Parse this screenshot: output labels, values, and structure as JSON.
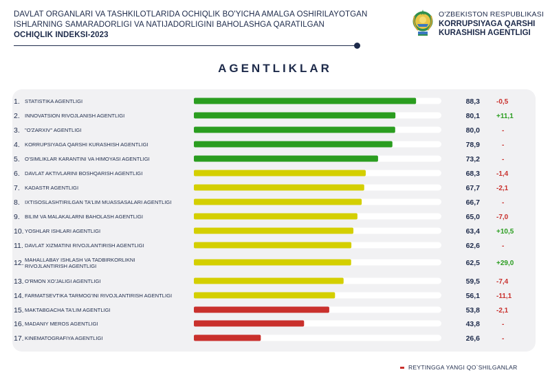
{
  "header": {
    "line1": "DAVLAT ORGANLARI VA TASHKILOTLARIDA OCHIQLIK BO'YICHA AMALGA OSHIRILAYOTGAN",
    "line2": "ISHLARNING SAMARADORLIGI VA NATIJADORLIGINI BAHOLASHGA QARATILGAN",
    "line3": "OCHIQLIK INDEKSI-2023"
  },
  "agency": {
    "line1": "O'ZBEKISTON RESPUBLIKASI",
    "line2": "KORRUPSIYAGA QARSHI",
    "line3": "KURASHISH AGENTLIGI"
  },
  "colors": {
    "green": "#2a9d1f",
    "yellow": "#d4cf00",
    "red": "#c9302c",
    "track": "#ffffff",
    "positive": "#2a9d1f",
    "negative": "#c9302c",
    "text": "#1d2a4a"
  },
  "chart_data": {
    "type": "bar",
    "title": "AGENTLIKLAR",
    "orientation": "horizontal",
    "xlim": [
      0,
      100
    ],
    "categories": [
      {
        "rank": "1.",
        "label": "STATISTIKA AGENTLIGI",
        "value": 88.3,
        "value_text": "88,3",
        "change": "-0,5",
        "change_sign": "neg",
        "band": "green"
      },
      {
        "rank": "2.",
        "label": "INNOVATSION RIVOJLANISH AGENTLIGI",
        "value": 80.1,
        "value_text": "80,1",
        "change": "+11,1",
        "change_sign": "pos",
        "band": "green"
      },
      {
        "rank": "3.",
        "label": "\"O'ZARXIV\" AGENTLIGI",
        "value": 80.0,
        "value_text": "80,0",
        "change": "-",
        "change_sign": "neg",
        "band": "green"
      },
      {
        "rank": "4.",
        "label": "KORRUPSIYAGA QARSHI KURASHISH AGENTLIGI",
        "value": 78.9,
        "value_text": "78,9",
        "change": "-",
        "change_sign": "neg",
        "band": "green"
      },
      {
        "rank": "5.",
        "label": "O'SIMLIKLAR KARANTINI VA HIMOYASI AGENTLIGI",
        "value": 73.2,
        "value_text": "73,2",
        "change": "-",
        "change_sign": "neg",
        "band": "green"
      },
      {
        "rank": "6.",
        "label": "DAVLAT AKTIVLARINI BOSHQARISH AGENTLIGI",
        "value": 68.3,
        "value_text": "68,3",
        "change": "-1,4",
        "change_sign": "neg",
        "band": "yellow"
      },
      {
        "rank": "7.",
        "label": "KADASTR AGENTLIGI",
        "value": 67.7,
        "value_text": "67,7",
        "change": "-2,1",
        "change_sign": "neg",
        "band": "yellow"
      },
      {
        "rank": "8.",
        "label": "IXTISOSLASHTIRILGAN TA'LIM MUASSASALARI AGENTLIGI",
        "value": 66.7,
        "value_text": "66,7",
        "change": "-",
        "change_sign": "neg",
        "band": "yellow"
      },
      {
        "rank": "9.",
        "label": "BILIM VA MALAKALARNI BAHOLASH AGENTLIGI",
        "value": 65.0,
        "value_text": "65,0",
        "change": "-7,0",
        "change_sign": "neg",
        "band": "yellow"
      },
      {
        "rank": "10.",
        "label": "YOSHLAR ISHLARI AGENTLIGI",
        "value": 63.4,
        "value_text": "63,4",
        "change": "+10,5",
        "change_sign": "pos",
        "band": "yellow"
      },
      {
        "rank": "11.",
        "label": "DAVLAT XIZMATINI RIVOJLANTIRISH AGENTLIGI",
        "value": 62.6,
        "value_text": "62,6",
        "change": "-",
        "change_sign": "neg",
        "band": "yellow"
      },
      {
        "rank": "12.",
        "label": "MAHALLABAY ISHLASH VA TADBIRKORLIKNI",
        "label2": "RIVOJLANTIRISH AGENTLIGI",
        "value": 62.5,
        "value_text": "62,5",
        "change": "+29,0",
        "change_sign": "pos",
        "band": "yellow"
      },
      {
        "rank": "13.",
        "label": "O'RMON XO'JALIGI AGENTLIGI",
        "value": 59.5,
        "value_text": "59,5",
        "change": "-7,4",
        "change_sign": "neg",
        "band": "yellow"
      },
      {
        "rank": "14.",
        "label": "FARMATSEVTIKA TARMOG'INI RIVOJLANTIRISH AGENTLIGI",
        "value": 56.1,
        "value_text": "56,1",
        "change": "-11,1",
        "change_sign": "neg",
        "band": "yellow"
      },
      {
        "rank": "15.",
        "label": "MAKTABGACHA TA'LIM AGENTLIGI",
        "value": 53.8,
        "value_text": "53,8",
        "change": "-2,1",
        "change_sign": "neg",
        "band": "red"
      },
      {
        "rank": "16.",
        "label": "MADANIY MEROS AGENTLIGI",
        "value": 43.8,
        "value_text": "43,8",
        "change": "-",
        "change_sign": "neg",
        "band": "red"
      },
      {
        "rank": "17.",
        "label": "KINEMATOGRAFIYA AGENTLIGI",
        "value": 26.6,
        "value_text": "26,6",
        "change": "-",
        "change_sign": "neg",
        "band": "red"
      }
    ]
  },
  "legend": {
    "label": "REYTINGGA YANGI QO`SHILGANLAR"
  }
}
